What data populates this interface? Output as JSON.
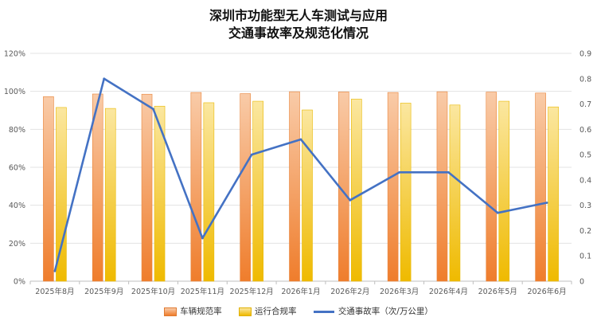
{
  "chart_data": {
    "type": "bar",
    "title": "深圳市功能型无人车测试与应用",
    "subtitle": "交通事故率及规范化情况",
    "categories": [
      "2025年8月",
      "2025年9月",
      "2025年10月",
      "2025年11月",
      "2025年12月",
      "2026年1月",
      "2026年2月",
      "2026年3月",
      "2026年4月",
      "2026年5月",
      "2026年6月"
    ],
    "series": [
      {
        "name": "车辆规范率",
        "type": "bar",
        "axis": "left",
        "color": "#F08A3A",
        "values": [
          97.2,
          98.6,
          98.5,
          99.4,
          98.8,
          99.8,
          99.7,
          99.4,
          99.8,
          99.6,
          99.1
        ]
      },
      {
        "name": "运行合规率",
        "type": "bar",
        "axis": "left",
        "color": "#F2C012",
        "values": [
          91.5,
          91.0,
          92.2,
          94.0,
          94.8,
          90.2,
          95.9,
          93.8,
          92.8,
          94.8,
          91.8
        ]
      },
      {
        "name": "交通事故率（次/万公里）",
        "type": "line",
        "axis": "right",
        "color": "#4472C4",
        "values": [
          0.04,
          0.8,
          0.68,
          0.17,
          0.5,
          0.56,
          0.32,
          0.43,
          0.43,
          0.27,
          0.31
        ]
      }
    ],
    "y_left": {
      "min": 0,
      "max": 120,
      "step": 20,
      "tick_labels": [
        "0%",
        "20%",
        "40%",
        "60%",
        "80%",
        "100%",
        "120%"
      ]
    },
    "y_right": {
      "min": 0,
      "max": 0.9,
      "step": 0.1,
      "tick_labels": [
        "0",
        "0.1",
        "0.2",
        "0.3",
        "0.4",
        "0.5",
        "0.6",
        "0.7",
        "0.8",
        "0.9"
      ]
    },
    "grid": true,
    "legend_position": "bottom"
  }
}
